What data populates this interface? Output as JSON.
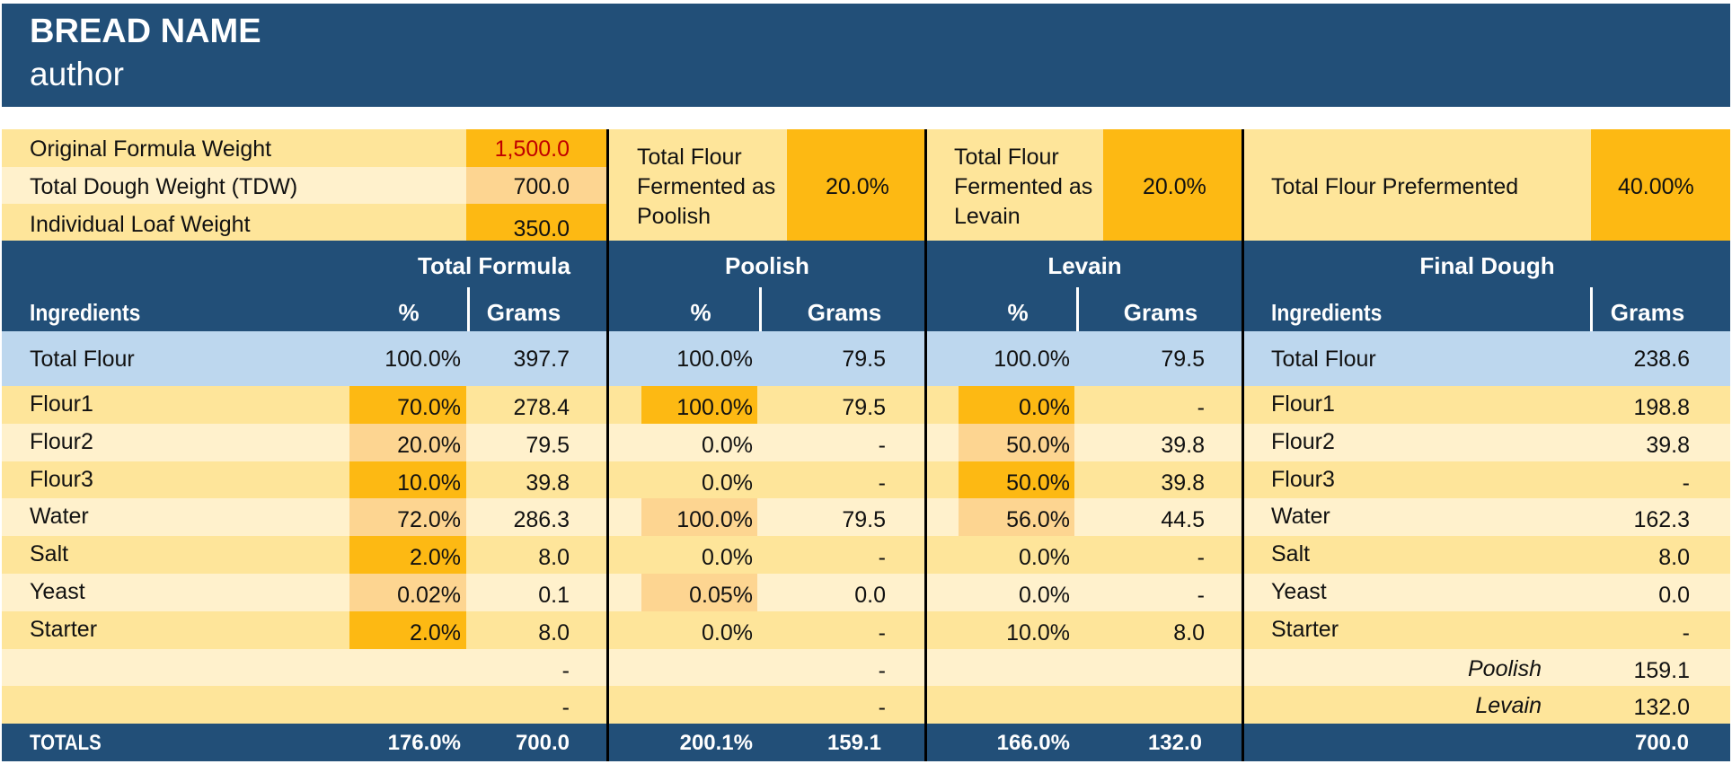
{
  "title": {
    "name": "BREAD NAME",
    "author": "author"
  },
  "colors": {
    "navy": "#224f78",
    "light_yellow": "#fee59a",
    "pale_yellow": "#fff1cc",
    "orange": "#fdb913",
    "peach": "#fdd591",
    "blue": "#bdd7ee",
    "red": "#c00000"
  },
  "info": {
    "original_formula_weight": {
      "label": "Original Formula Weight",
      "value": "1,500.0"
    },
    "total_dough_weight": {
      "label": "Total Dough Weight (TDW)",
      "value": "700.0"
    },
    "individual_loaf_weight": {
      "label": "Individual Loaf Weight",
      "value": "350.0"
    },
    "poolish_fermented": {
      "label_lines": [
        "Total Flour",
        "Fermented as",
        "Poolish"
      ],
      "value": "20.0%"
    },
    "levain_fermented": {
      "label_lines": [
        "Total Flour",
        "Fermented as",
        "Levain"
      ],
      "value": "20.0%"
    },
    "total_prefermented": {
      "label": "Total Flour Prefermented",
      "value": "40.00%"
    }
  },
  "headers": {
    "total_formula": "Total Formula",
    "poolish": "Poolish",
    "levain": "Levain",
    "final_dough": "Final Dough",
    "ingredients": "Ingredients",
    "pct": "%",
    "grams": "Grams"
  },
  "total_flour": {
    "label": "Total Flour",
    "tf_pct": "100.0%",
    "tf_grams": "397.7",
    "p_pct": "100.0%",
    "p_grams": "79.5",
    "l_pct": "100.0%",
    "l_grams": "79.5",
    "fd_grams": "238.6"
  },
  "rows": [
    {
      "name": "Flour1",
      "tf_pct": "70.0%",
      "tf_grams": "278.4",
      "p_pct": "100.0%",
      "p_grams": "79.5",
      "l_pct": "0.0%",
      "l_grams": "-",
      "fd_name": "Flour1",
      "fd_grams": "198.8"
    },
    {
      "name": "Flour2",
      "tf_pct": "20.0%",
      "tf_grams": "79.5",
      "p_pct": "0.0%",
      "p_grams": "-",
      "l_pct": "50.0%",
      "l_grams": "39.8",
      "fd_name": "Flour2",
      "fd_grams": "39.8"
    },
    {
      "name": "Flour3",
      "tf_pct": "10.0%",
      "tf_grams": "39.8",
      "p_pct": "0.0%",
      "p_grams": "-",
      "l_pct": "50.0%",
      "l_grams": "39.8",
      "fd_name": "Flour3",
      "fd_grams": "-"
    },
    {
      "name": "Water",
      "tf_pct": "72.0%",
      "tf_grams": "286.3",
      "p_pct": "100.0%",
      "p_grams": "79.5",
      "l_pct": "56.0%",
      "l_grams": "44.5",
      "fd_name": "Water",
      "fd_grams": "162.3"
    },
    {
      "name": "Salt",
      "tf_pct": "2.0%",
      "tf_grams": "8.0",
      "p_pct": "0.0%",
      "p_grams": "-",
      "l_pct": "0.0%",
      "l_grams": "-",
      "fd_name": "Salt",
      "fd_grams": "8.0"
    },
    {
      "name": "Yeast",
      "tf_pct": "0.02%",
      "tf_grams": "0.1",
      "p_pct": "0.05%",
      "p_grams": "0.0",
      "l_pct": "0.0%",
      "l_grams": "-",
      "fd_name": "Yeast",
      "fd_grams": "0.0"
    },
    {
      "name": "Starter",
      "tf_pct": "2.0%",
      "tf_grams": "8.0",
      "p_pct": "0.0%",
      "p_grams": "-",
      "l_pct": "10.0%",
      "l_grams": "8.0",
      "fd_name": "Starter",
      "fd_grams": "-"
    },
    {
      "name": "",
      "tf_pct": "",
      "tf_grams": "-",
      "p_pct": "",
      "p_grams": "-",
      "l_pct": "",
      "l_grams": "",
      "fd_name": "Poolish",
      "fd_grams": "159.1"
    },
    {
      "name": "",
      "tf_pct": "",
      "tf_grams": "-",
      "p_pct": "",
      "p_grams": "-",
      "l_pct": "",
      "l_grams": "",
      "fd_name": "Levain",
      "fd_grams": "132.0"
    }
  ],
  "totals": {
    "label": "TOTALS",
    "tf_pct": "176.0%",
    "tf_grams": "700.0",
    "p_pct": "200.1%",
    "p_grams": "159.1",
    "l_pct": "166.0%",
    "l_grams": "132.0",
    "fd_grams": "700.0"
  }
}
